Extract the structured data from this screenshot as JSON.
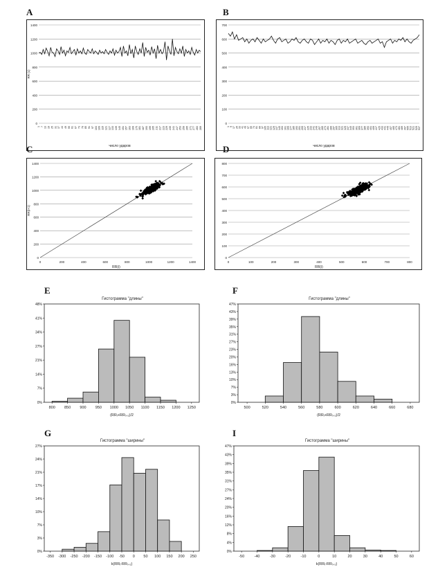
{
  "panels": [
    {
      "letter": "A",
      "chart_data": {
        "type": "line",
        "xlabel": "число ударов",
        "ylabel": "RR (с)",
        "ylim": [
          0,
          1400
        ],
        "y_ticks": [
          0,
          200,
          400,
          600,
          800,
          1000,
          1200,
          1400
        ],
        "x_ticks": [
          1,
          7,
          13,
          19,
          25,
          31,
          37,
          43,
          49,
          55,
          61,
          67,
          73,
          79,
          85,
          91,
          97,
          103,
          109,
          115,
          121,
          127,
          133,
          139,
          145,
          151,
          157,
          163,
          169,
          175,
          181,
          187,
          193,
          199,
          205,
          211,
          217,
          223,
          229,
          235,
          241,
          247,
          253,
          259,
          265,
          271,
          277,
          283,
          289
        ],
        "grid": true,
        "series": [
          {
            "values": [
              1000,
              1010,
              980,
              1050,
              990,
              1070,
              1020,
              960,
              1080,
              1010,
              1000,
              950,
              1060,
              1030,
              980,
              1090,
              1000,
              1040,
              960,
              1030,
              1010,
              1080,
              990,
              1020,
              1050,
              970,
              1060,
              1000,
              1030,
              990,
              1070,
              1000,
              980,
              1050,
              1020,
              1000,
              1060,
              990,
              1030,
              1010,
              980,
              1040,
              1000,
              1020,
              990,
              1050,
              1010,
              980,
              1030,
              1000,
              1060,
              970,
              1040,
              1000,
              1020,
              1080,
              950,
              1100,
              1000,
              1030,
              960,
              1120,
              990,
              1050,
              930,
              1100,
              1020,
              980,
              1060,
              1000,
              1150,
              950,
              1080,
              1010,
              1040,
              970,
              1090,
              1000,
              1060,
              920,
              1110,
              1000,
              1050,
              990,
              1020,
              1160,
              900,
              1100,
              1030,
              980,
              1200,
              960,
              1080,
              1020,
              990,
              1060,
              1000,
              1100,
              950,
              1050,
              1000,
              1030,
              980,
              1080,
              1010,
              970,
              1050,
              1000,
              1040,
              1020
            ]
          }
        ]
      }
    },
    {
      "letter": "B",
      "chart_data": {
        "type": "line",
        "xlabel": "число ударов",
        "ylabel": "",
        "ylim": [
          0,
          700
        ],
        "y_ticks": [
          0,
          100,
          200,
          300,
          400,
          500,
          600,
          700
        ],
        "x_ticks": [
          1,
          9,
          17,
          25,
          33,
          41,
          49,
          57,
          65,
          73,
          81,
          89,
          97,
          105,
          113,
          121,
          129,
          137,
          145,
          153,
          161,
          169,
          177,
          185,
          193,
          201,
          209,
          217,
          225,
          233,
          241,
          249,
          257,
          265,
          273,
          281,
          289,
          297,
          305,
          313,
          321,
          329,
          337,
          345,
          353,
          361,
          369,
          377,
          385,
          393,
          401,
          409,
          417,
          425,
          433,
          441,
          449,
          457,
          465,
          473,
          481,
          489,
          497,
          505,
          513,
          521,
          529,
          537
        ],
        "grid": true,
        "series": [
          {
            "values": [
              640,
              620,
              650,
              600,
              630,
              590,
              600,
              610,
              580,
              600,
              570,
              590,
              600,
              580,
              610,
              590,
              570,
              600,
              580,
              590,
              600,
              620,
              590,
              570,
              600,
              610,
              580,
              590,
              600,
              570,
              580,
              600,
              590,
              610,
              580,
              570,
              590,
              600,
              580,
              570,
              600,
              590,
              560,
              580,
              600,
              570,
              590,
              580,
              600,
              570,
              590,
              580,
              560,
              590,
              600,
              570,
              590,
              580,
              600,
              570,
              580,
              590,
              600,
              570,
              580,
              590,
              570,
              560,
              580,
              590,
              570,
              580,
              590,
              600,
              570,
              580,
              540,
              580,
              590,
              600,
              570,
              590,
              580,
              600,
              590,
              610,
              580,
              600,
              580,
              570,
              590,
              600,
              610,
              630
            ]
          }
        ]
      }
    },
    {
      "letter": "C",
      "chart_data": {
        "type": "scatter",
        "xlabel": "RR(i)",
        "ylabel": "RR(i+1)",
        "xlim": [
          0,
          1400
        ],
        "ylim": [
          0,
          1400
        ],
        "x_ticks": [
          0,
          200,
          400,
          600,
          800,
          1000,
          1200,
          1400
        ],
        "y_ticks": [
          0,
          200,
          400,
          600,
          800,
          1000,
          1200,
          1400
        ],
        "grid": true,
        "center": [
          1020,
          1020
        ],
        "spread": [
          45,
          45
        ],
        "n": 300,
        "identity_line": true
      }
    },
    {
      "letter": "D",
      "chart_data": {
        "type": "scatter",
        "xlabel": "RR(i)",
        "ylabel": "",
        "xlim": [
          0,
          800
        ],
        "ylim": [
          0,
          800
        ],
        "x_ticks": [
          0,
          100,
          200,
          300,
          400,
          500,
          600,
          700,
          800
        ],
        "y_ticks": [
          0,
          100,
          200,
          300,
          400,
          500,
          600,
          700,
          800
        ],
        "grid": true,
        "center": [
          575,
          575
        ],
        "spread": [
          28,
          28
        ],
        "n": 300,
        "identity_line": true
      }
    },
    {
      "letter": "E",
      "chart_data": {
        "type": "bar",
        "title": "Гистограмма \"длины\"",
        "xlabel": "(RRᵢ+RRᵢ₊₁)/2",
        "xlim": [
          775,
          1275
        ],
        "bin_edges": [
          800,
          850,
          900,
          950,
          1000,
          1050,
          1100,
          1150,
          1200
        ],
        "values": [
          0.5,
          2,
          5,
          26,
          40,
          22,
          2.5,
          1
        ],
        "ylim": [
          0,
          48
        ],
        "y_ticks": [
          "0%",
          "7%",
          "14%",
          "21%",
          "27%",
          "34%",
          "41%",
          "48%"
        ],
        "x_ticks": [
          800,
          850,
          900,
          950,
          1000,
          1050,
          1100,
          1150,
          1200,
          1250
        ]
      }
    },
    {
      "letter": "F",
      "chart_data": {
        "type": "bar",
        "title": "Гистограмма \"длины\"",
        "xlabel": "(RRᵢ+RRᵢ₊₁)/2",
        "xlim": [
          490,
          690
        ],
        "bin_edges": [
          520,
          540,
          560,
          580,
          600,
          620,
          640,
          660
        ],
        "values": [
          3,
          19,
          41,
          24,
          10,
          3,
          1.5
        ],
        "ylim": [
          0,
          47
        ],
        "y_ticks": [
          "0%",
          "3%",
          "7%",
          "10%",
          "13%",
          "16%",
          "20%",
          "23%",
          "27%",
          "31%",
          "35%",
          "39%",
          "43%",
          "47%"
        ],
        "x_ticks": [
          500,
          520,
          540,
          560,
          580,
          600,
          620,
          640,
          660,
          680
        ]
      }
    },
    {
      "letter": "G",
      "chart_data": {
        "type": "bar",
        "title": "Гистограмма \"ширины\"",
        "xlabel": "k(RRᵢ-RRᵢ₊₁)",
        "xlim": [
          -375,
          275
        ],
        "bin_edges": [
          -300,
          -250,
          -200,
          -150,
          -100,
          -50,
          0,
          50,
          100,
          150,
          200
        ],
        "values": [
          0.5,
          1,
          2,
          5,
          17,
          24,
          20,
          21,
          8,
          2.5
        ],
        "ylim": [
          0,
          27
        ],
        "y_ticks": [
          "0%",
          "3%",
          "7%",
          "10%",
          "14%",
          "17%",
          "21%",
          "24%",
          "27%"
        ],
        "x_ticks": [
          -350,
          -300,
          -250,
          -200,
          -150,
          -100,
          -50,
          0,
          50,
          100,
          150,
          200,
          250
        ]
      }
    },
    {
      "letter": "I",
      "chart_data": {
        "type": "bar",
        "title": "Гистограмма \"ширины\"",
        "xlabel": "k(RRᵢ-RRᵢ₊₁)",
        "xlim": [
          -55,
          65
        ],
        "bin_edges": [
          -40,
          -30,
          -20,
          -10,
          0,
          10,
          20,
          30,
          40,
          50
        ],
        "values": [
          0.3,
          1.5,
          11,
          36,
          42,
          7,
          1.5,
          0.5,
          0.3
        ],
        "ylim": [
          0,
          47
        ],
        "y_ticks": [
          "0%",
          "4%",
          "8%",
          "12%",
          "16%",
          "20%",
          "24%",
          "27%",
          "31%",
          "35%",
          "39%",
          "43%",
          "47%"
        ],
        "x_ticks": [
          -50,
          -40,
          -30,
          -20,
          -10,
          0,
          10,
          20,
          30,
          40,
          50,
          60
        ]
      }
    }
  ]
}
